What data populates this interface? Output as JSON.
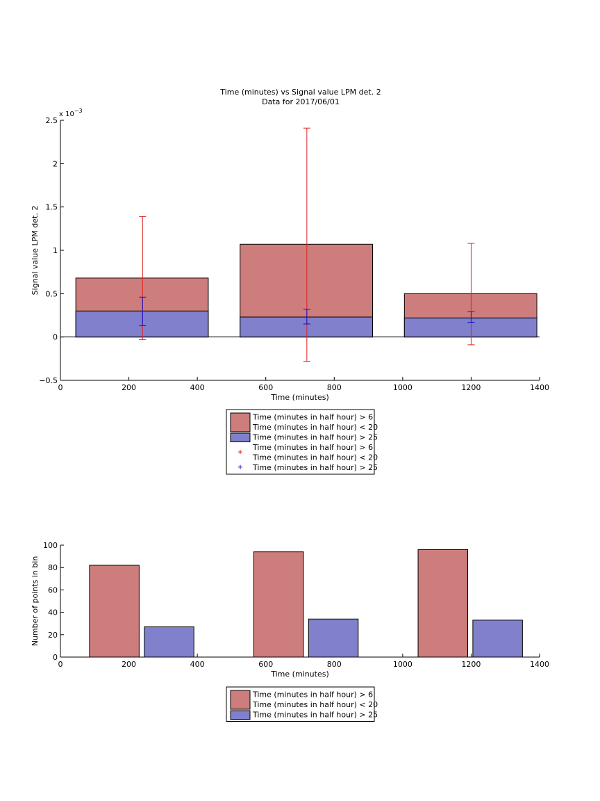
{
  "figure": {
    "title_line1": "Time (minutes) vs Signal value LPM det. 2",
    "title_line2": "Data for 2017/06/01"
  },
  "colors": {
    "red_fill": "#cc7d7c",
    "blue_fill": "#8080cc",
    "red_error": "#e02020",
    "blue_error": "#1010d0"
  },
  "legend_top": {
    "entries": [
      {
        "type": "patch",
        "color": "red",
        "lines": [
          "Time (minutes in half hour) > 6",
          "Time (minutes in half hour) < 20"
        ]
      },
      {
        "type": "patch",
        "color": "blue",
        "lines": [
          "Time (minutes in half hour) > 25"
        ]
      },
      {
        "type": "marker",
        "color": "red",
        "lines": [
          "Time (minutes in half hour) > 6",
          "Time (minutes in half hour) < 20"
        ]
      },
      {
        "type": "marker",
        "color": "blue",
        "lines": [
          "Time (minutes in half hour) > 25"
        ]
      }
    ]
  },
  "legend_bottom": {
    "entries": [
      {
        "type": "patch",
        "color": "red",
        "lines": [
          "Time (minutes in half hour) > 6",
          "Time (minutes in half hour) < 20"
        ]
      },
      {
        "type": "patch",
        "color": "blue",
        "lines": [
          "Time (minutes in half hour) > 25"
        ]
      }
    ]
  },
  "chart_data": [
    {
      "type": "bar",
      "title": "Time (minutes) vs Signal value LPM det. 2",
      "subtitle": "Data for 2017/06/01",
      "xlabel": "Time (minutes)",
      "ylabel": "Signal value LPM det. 2",
      "exponent_label": "x 10",
      "exponent_power": "−3",
      "xlim": [
        0,
        1400
      ],
      "ylim": [
        -0.5,
        2.5
      ],
      "xticks": [
        "0",
        "200",
        "400",
        "600",
        "800",
        "1000",
        "1200",
        "1400"
      ],
      "yticks": [
        "−0.5",
        "0",
        "0.5",
        "1",
        "1.5",
        "2",
        "2.5"
      ],
      "xtick_values": [
        0,
        200,
        400,
        600,
        800,
        1000,
        1200,
        1400
      ],
      "ytick_values": [
        -0.5,
        0,
        0.5,
        1,
        1.5,
        2,
        2.5
      ],
      "bars": [
        {
          "x_start": 45,
          "x_end": 432,
          "red": 0.68,
          "blue": 0.3
        },
        {
          "x_start": 525,
          "x_end": 912,
          "red": 1.07,
          "blue": 0.23
        },
        {
          "x_start": 1005,
          "x_end": 1392,
          "red": 0.5,
          "blue": 0.22
        }
      ],
      "errorbars_red": [
        {
          "x": 240,
          "low": -0.03,
          "high": 1.39
        },
        {
          "x": 720,
          "low": -0.28,
          "high": 2.41
        },
        {
          "x": 1200,
          "low": -0.09,
          "high": 1.08
        }
      ],
      "errorbars_blue": [
        {
          "x": 240,
          "low": 0.13,
          "high": 0.46
        },
        {
          "x": 720,
          "low": 0.15,
          "high": 0.32
        },
        {
          "x": 1200,
          "low": 0.17,
          "high": 0.29
        }
      ],
      "grid": false,
      "legend": "below"
    },
    {
      "type": "bar",
      "xlabel": "Time (minutes)",
      "ylabel": "Number of points in bin",
      "xlim": [
        0,
        1400
      ],
      "ylim": [
        0,
        100
      ],
      "xticks": [
        "0",
        "200",
        "400",
        "600",
        "800",
        "1000",
        "1200",
        "1400"
      ],
      "yticks": [
        "0",
        "20",
        "40",
        "60",
        "80",
        "100"
      ],
      "xtick_values": [
        0,
        200,
        400,
        600,
        800,
        1000,
        1200,
        1400
      ],
      "ytick_values": [
        0,
        20,
        40,
        60,
        80,
        100
      ],
      "series": [
        {
          "color": "red",
          "bars": [
            {
              "x_start": 85,
              "x_end": 230,
              "value": 82
            },
            {
              "x_start": 565,
              "x_end": 710,
              "value": 94
            },
            {
              "x_start": 1045,
              "x_end": 1190,
              "value": 96
            }
          ]
        },
        {
          "color": "blue",
          "bars": [
            {
              "x_start": 245,
              "x_end": 390,
              "value": 27
            },
            {
              "x_start": 725,
              "x_end": 870,
              "value": 34
            },
            {
              "x_start": 1205,
              "x_end": 1350,
              "value": 33
            }
          ]
        }
      ],
      "grid": false,
      "legend": "below"
    }
  ]
}
